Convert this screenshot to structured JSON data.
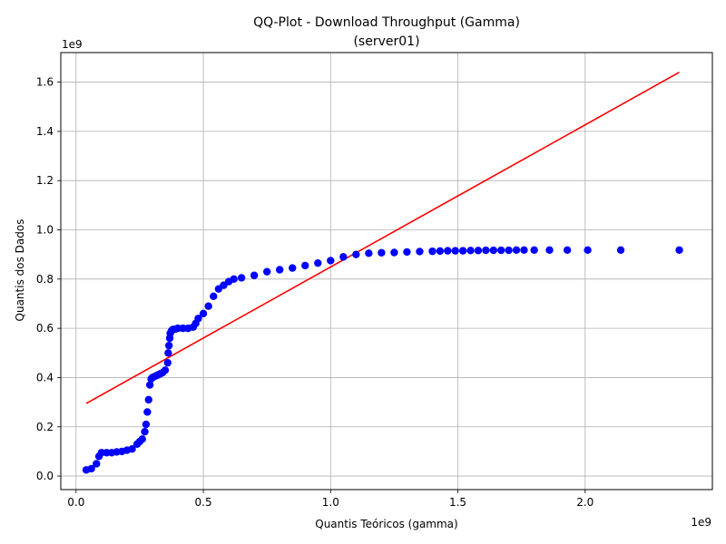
{
  "chart_data": {
    "type": "scatter",
    "title": [
      "QQ-Plot - Download Throughput (Gamma)",
      "(server01)"
    ],
    "xlabel": "Quantis Teóricos (gamma)",
    "ylabel": "Quantis dos Dados",
    "x_offset_label": "1e9",
    "y_offset_label": "1e9",
    "xlim": [
      -0.06,
      2.5
    ],
    "ylim": [
      -0.055,
      1.72
    ],
    "xticks": [
      0.0,
      0.5,
      1.0,
      1.5,
      2.0
    ],
    "xtick_labels": [
      "0.0",
      "0.5",
      "1.0",
      "1.5",
      "2.0"
    ],
    "yticks": [
      0.0,
      0.2,
      0.4,
      0.6,
      0.8,
      1.0,
      1.2,
      1.4,
      1.6
    ],
    "ytick_labels": [
      "0.0",
      "0.2",
      "0.4",
      "0.6",
      "0.8",
      "1.0",
      "1.2",
      "1.4",
      "1.6"
    ],
    "grid": true,
    "series": [
      {
        "kind": "points",
        "color": "#0000ff",
        "x": [
          0.04,
          0.06,
          0.08,
          0.09,
          0.1,
          0.12,
          0.14,
          0.16,
          0.18,
          0.2,
          0.22,
          0.24,
          0.25,
          0.26,
          0.27,
          0.275,
          0.28,
          0.285,
          0.29,
          0.295,
          0.3,
          0.31,
          0.32,
          0.33,
          0.34,
          0.35,
          0.36,
          0.362,
          0.365,
          0.368,
          0.37,
          0.375,
          0.38,
          0.39,
          0.4,
          0.42,
          0.44,
          0.46,
          0.47,
          0.48,
          0.5,
          0.52,
          0.54,
          0.56,
          0.58,
          0.6,
          0.62,
          0.65,
          0.7,
          0.75,
          0.8,
          0.85,
          0.9,
          0.95,
          1.0,
          1.05,
          1.1,
          1.15,
          1.2,
          1.25,
          1.3,
          1.35,
          1.4,
          1.43,
          1.46,
          1.49,
          1.52,
          1.55,
          1.58,
          1.61,
          1.64,
          1.67,
          1.7,
          1.73,
          1.76,
          1.8,
          1.86,
          1.93,
          2.01,
          2.14,
          2.37
        ],
        "y": [
          0.025,
          0.03,
          0.05,
          0.08,
          0.095,
          0.095,
          0.095,
          0.098,
          0.1,
          0.105,
          0.11,
          0.13,
          0.14,
          0.15,
          0.18,
          0.21,
          0.26,
          0.31,
          0.37,
          0.395,
          0.4,
          0.405,
          0.41,
          0.415,
          0.42,
          0.43,
          0.46,
          0.5,
          0.53,
          0.56,
          0.58,
          0.59,
          0.595,
          0.597,
          0.6,
          0.6,
          0.6,
          0.605,
          0.62,
          0.64,
          0.66,
          0.69,
          0.73,
          0.76,
          0.775,
          0.79,
          0.8,
          0.805,
          0.815,
          0.83,
          0.838,
          0.845,
          0.855,
          0.865,
          0.875,
          0.89,
          0.9,
          0.905,
          0.907,
          0.908,
          0.91,
          0.912,
          0.913,
          0.914,
          0.915,
          0.915,
          0.915,
          0.916,
          0.916,
          0.917,
          0.917,
          0.917,
          0.917,
          0.918,
          0.918,
          0.918,
          0.918,
          0.918,
          0.918,
          0.918,
          0.918
        ]
      },
      {
        "kind": "line",
        "color": "#ff0000",
        "x": [
          0.04,
          2.37
        ],
        "y": [
          0.295,
          1.64
        ]
      }
    ]
  }
}
